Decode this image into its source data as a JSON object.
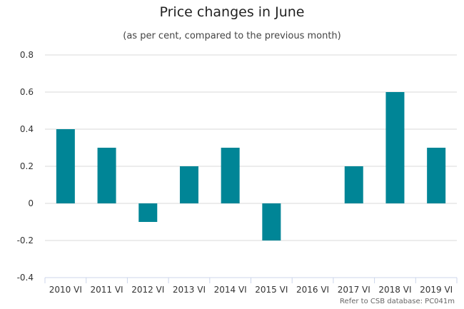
{
  "chart_data": {
    "type": "bar",
    "title": "Price changes in June",
    "subtitle": "(as per cent, compared to the previous month)",
    "categories": [
      "2010 VI",
      "2011 VI",
      "2012 VI",
      "2013 VI",
      "2014 VI",
      "2015 VI",
      "2016 VI",
      "2017 VI",
      "2018 VI",
      "2019 VI"
    ],
    "values": [
      0.4,
      0.3,
      -0.1,
      0.2,
      0.3,
      -0.2,
      0.0,
      0.2,
      0.6,
      0.3
    ],
    "y_ticks": [
      "0.8",
      "0.6",
      "0.4",
      "0.2",
      "0",
      "-0.2",
      "-0.4"
    ],
    "y_tick_values": [
      0.8,
      0.6,
      0.4,
      0.2,
      0,
      -0.2,
      -0.4
    ],
    "ylim": [
      -0.4,
      0.8
    ],
    "xlabel": "",
    "ylabel": "",
    "grid": true,
    "legend": "none",
    "bar_color": "#008596",
    "grid_color": "#d8d8d8",
    "credit": "Refer to CSB database: PC041m"
  }
}
